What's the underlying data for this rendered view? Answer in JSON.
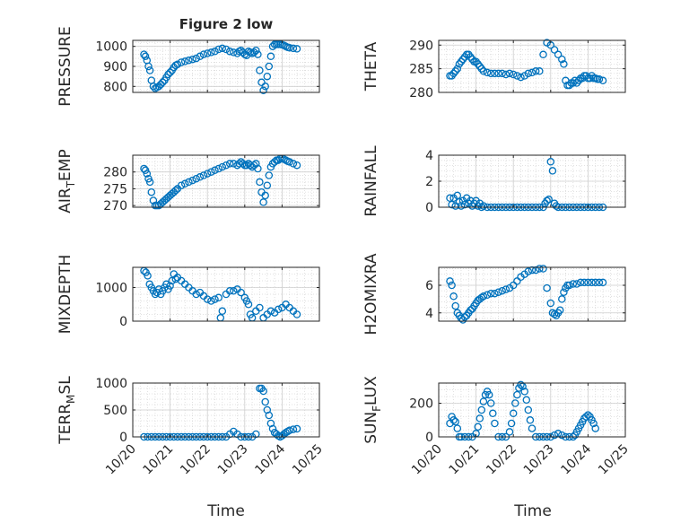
{
  "figure": {
    "title": "Figure 2 low",
    "xlabel_left": "Time",
    "xlabel_right": "Time",
    "xticks": [
      "10/20",
      "10/21",
      "10/22",
      "10/23",
      "10/24",
      "10/25"
    ],
    "marker_color": "#0072BD"
  },
  "chart_data": [
    {
      "type": "scatter",
      "id": "pressure",
      "title": "Figure 2 low",
      "ylabel": "PRESSURE",
      "ylim": [
        770,
        1030
      ],
      "yticks": [
        800,
        900,
        1000
      ],
      "xlim": [
        0,
        5
      ],
      "grid": true,
      "x": [
        0.3,
        0.34,
        0.38,
        0.42,
        0.46,
        0.5,
        0.55,
        0.6,
        0.65,
        0.7,
        0.75,
        0.8,
        0.85,
        0.9,
        0.95,
        1.0,
        1.05,
        1.1,
        1.15,
        1.2,
        1.3,
        1.4,
        1.5,
        1.6,
        1.7,
        1.8,
        1.9,
        2.0,
        2.1,
        2.2,
        2.3,
        2.4,
        2.5,
        2.6,
        2.7,
        2.8,
        2.85,
        2.9,
        2.95,
        3.0,
        3.05,
        3.1,
        3.15,
        3.2,
        3.25,
        3.3,
        3.35,
        3.4,
        3.45,
        3.5,
        3.55,
        3.6,
        3.65,
        3.7,
        3.75,
        3.8,
        3.85,
        3.9,
        3.95,
        4.0,
        4.05,
        4.1,
        4.15,
        4.2,
        4.3,
        4.4
      ],
      "y": [
        960,
        950,
        930,
        900,
        880,
        830,
        800,
        790,
        795,
        800,
        810,
        820,
        830,
        845,
        860,
        870,
        880,
        895,
        905,
        910,
        920,
        925,
        930,
        935,
        940,
        950,
        960,
        965,
        970,
        975,
        985,
        990,
        985,
        975,
        970,
        965,
        975,
        980,
        970,
        960,
        955,
        975,
        970,
        965,
        970,
        980,
        960,
        880,
        820,
        780,
        800,
        850,
        900,
        950,
        1000,
        1010,
        1010,
        1010,
        1010,
        1008,
        1005,
        1000,
        995,
        993,
        990,
        988
      ]
    },
    {
      "type": "scatter",
      "id": "theta",
      "ylabel": "THETA",
      "ylim": [
        280,
        291
      ],
      "yticks": [
        280,
        285,
        290
      ],
      "xlim": [
        0,
        5
      ],
      "grid": true,
      "x": [
        0.3,
        0.35,
        0.4,
        0.45,
        0.5,
        0.55,
        0.6,
        0.65,
        0.7,
        0.75,
        0.8,
        0.85,
        0.9,
        0.95,
        1.0,
        1.05,
        1.1,
        1.15,
        1.2,
        1.3,
        1.4,
        1.5,
        1.6,
        1.7,
        1.8,
        1.9,
        2.0,
        2.1,
        2.2,
        2.3,
        2.4,
        2.5,
        2.6,
        2.7,
        2.8,
        2.9,
        3.0,
        3.1,
        3.2,
        3.3,
        3.35,
        3.4,
        3.45,
        3.5,
        3.55,
        3.6,
        3.65,
        3.7,
        3.75,
        3.8,
        3.85,
        3.9,
        3.95,
        4.0,
        4.05,
        4.1,
        4.15,
        4.2,
        4.25,
        4.3,
        4.4
      ],
      "y": [
        283.5,
        283.5,
        284,
        284.5,
        285,
        286,
        286.5,
        287,
        287.5,
        288,
        288,
        287.5,
        287,
        286.5,
        286.5,
        286,
        285.5,
        285,
        284.5,
        284.2,
        284,
        284,
        284,
        284,
        283.8,
        284,
        283.8,
        283.5,
        283.2,
        283.5,
        284,
        284.2,
        284.5,
        284.5,
        288,
        290.5,
        290,
        289,
        288,
        287,
        286,
        282.5,
        281.5,
        281.5,
        282,
        282,
        282.5,
        282,
        282.5,
        283,
        283,
        283.5,
        283.5,
        283,
        283,
        283.5,
        283,
        283,
        282.8,
        282.8,
        282.5
      ]
    },
    {
      "type": "scatter",
      "id": "air-temp",
      "ylabel": "AIR_TEMP",
      "ylim": [
        269.5,
        285
      ],
      "yticks": [
        270,
        275,
        280
      ],
      "xlim": [
        0,
        5
      ],
      "grid": true,
      "x": [
        0.3,
        0.34,
        0.38,
        0.42,
        0.46,
        0.5,
        0.55,
        0.6,
        0.65,
        0.7,
        0.75,
        0.8,
        0.85,
        0.9,
        0.95,
        1.0,
        1.05,
        1.1,
        1.15,
        1.2,
        1.3,
        1.4,
        1.5,
        1.6,
        1.7,
        1.8,
        1.9,
        2.0,
        2.1,
        2.2,
        2.3,
        2.4,
        2.5,
        2.6,
        2.7,
        2.8,
        2.85,
        2.9,
        2.95,
        3.0,
        3.05,
        3.1,
        3.15,
        3.2,
        3.25,
        3.3,
        3.35,
        3.4,
        3.45,
        3.5,
        3.55,
        3.6,
        3.65,
        3.7,
        3.75,
        3.8,
        3.85,
        3.9,
        3.95,
        4.0,
        4.05,
        4.1,
        4.15,
        4.2,
        4.3,
        4.4
      ],
      "y": [
        281,
        280.5,
        279.5,
        278,
        277,
        274,
        271.5,
        270,
        270,
        270,
        270.5,
        271,
        271.5,
        272,
        272.5,
        273,
        273.5,
        274,
        274.5,
        275,
        276,
        276.5,
        277,
        277.5,
        278,
        278.5,
        279,
        279.5,
        280,
        280.5,
        281,
        281.5,
        282,
        282.5,
        282.5,
        282,
        282.5,
        283,
        282.5,
        282,
        282,
        282.5,
        282,
        281.5,
        282,
        282.5,
        281,
        277,
        274,
        271,
        273,
        276,
        279,
        281.5,
        282.5,
        283,
        283.5,
        283.5,
        284,
        284,
        283.8,
        283.5,
        283.2,
        283,
        282.5,
        282
      ]
    },
    {
      "type": "scatter",
      "id": "rainfall",
      "ylabel": "RAINFALL",
      "ylim": [
        0,
        4
      ],
      "yticks": [
        0,
        2,
        4
      ],
      "xlim": [
        0,
        5
      ],
      "grid": true,
      "x": [
        0.3,
        0.35,
        0.4,
        0.45,
        0.5,
        0.55,
        0.6,
        0.65,
        0.7,
        0.75,
        0.8,
        0.85,
        0.9,
        0.95,
        1.0,
        1.05,
        1.1,
        1.15,
        1.2,
        1.3,
        1.4,
        1.5,
        1.6,
        1.7,
        1.8,
        1.9,
        2.0,
        2.1,
        2.2,
        2.3,
        2.4,
        2.5,
        2.6,
        2.7,
        2.8,
        2.85,
        2.9,
        2.95,
        3.0,
        3.05,
        3.1,
        3.15,
        3.2,
        3.3,
        3.4,
        3.5,
        3.6,
        3.7,
        3.8,
        3.9,
        4.0,
        4.1,
        4.2,
        4.3,
        4.4
      ],
      "y": [
        0.7,
        0.2,
        0.7,
        0.1,
        0.9,
        0.4,
        0.1,
        0.5,
        0.2,
        0.7,
        0.3,
        0.5,
        0.1,
        0.3,
        0.5,
        0.1,
        0.3,
        0,
        0.1,
        0,
        0,
        0,
        0,
        0,
        0,
        0,
        0,
        0,
        0,
        0,
        0,
        0,
        0,
        0,
        0,
        0.3,
        0.5,
        0.6,
        3.5,
        2.8,
        0.3,
        0.1,
        0,
        0,
        0,
        0,
        0,
        0,
        0,
        0,
        0,
        0,
        0,
        0,
        0
      ]
    },
    {
      "type": "scatter",
      "id": "mixdepth",
      "ylabel": "MIXDEPTH",
      "ylim": [
        0,
        1600
      ],
      "yticks": [
        0,
        1000
      ],
      "xlim": [
        0,
        5
      ],
      "grid": true,
      "x": [
        0.3,
        0.35,
        0.4,
        0.45,
        0.5,
        0.55,
        0.6,
        0.65,
        0.7,
        0.75,
        0.8,
        0.85,
        0.9,
        0.95,
        1.0,
        1.05,
        1.1,
        1.15,
        1.2,
        1.3,
        1.4,
        1.5,
        1.6,
        1.7,
        1.8,
        1.9,
        2.0,
        2.1,
        2.2,
        2.3,
        2.35,
        2.4,
        2.5,
        2.6,
        2.7,
        2.8,
        2.9,
        3.0,
        3.05,
        3.1,
        3.15,
        3.2,
        3.3,
        3.4,
        3.5,
        3.6,
        3.7,
        3.8,
        3.9,
        4.0,
        4.1,
        4.2,
        4.3,
        4.4
      ],
      "y": [
        1500,
        1450,
        1350,
        1100,
        1000,
        900,
        800,
        850,
        950,
        800,
        900,
        1000,
        1100,
        950,
        1050,
        1200,
        1400,
        1250,
        1300,
        1200,
        1100,
        1000,
        900,
        800,
        850,
        750,
        650,
        600,
        650,
        700,
        100,
        300,
        800,
        900,
        900,
        950,
        850,
        700,
        600,
        500,
        200,
        100,
        300,
        400,
        100,
        200,
        300,
        250,
        350,
        400,
        500,
        400,
        300,
        200
      ]
    },
    {
      "type": "scatter",
      "id": "h2omixra",
      "ylabel": "H2OMIXRA",
      "ylim": [
        3.4,
        7.3
      ],
      "yticks": [
        4,
        6
      ],
      "xlim": [
        0,
        5
      ],
      "grid": true,
      "x": [
        0.3,
        0.35,
        0.4,
        0.45,
        0.5,
        0.55,
        0.6,
        0.65,
        0.7,
        0.75,
        0.8,
        0.85,
        0.9,
        0.95,
        1.0,
        1.05,
        1.1,
        1.15,
        1.2,
        1.3,
        1.4,
        1.5,
        1.6,
        1.7,
        1.8,
        1.9,
        2.0,
        2.1,
        2.2,
        2.3,
        2.4,
        2.5,
        2.6,
        2.7,
        2.8,
        2.9,
        3.0,
        3.05,
        3.1,
        3.15,
        3.2,
        3.25,
        3.3,
        3.35,
        3.4,
        3.45,
        3.5,
        3.6,
        3.7,
        3.8,
        3.9,
        4.0,
        4.1,
        4.2,
        4.3,
        4.4
      ],
      "y": [
        6.3,
        6,
        5.2,
        4.5,
        4.0,
        3.8,
        3.6,
        3.5,
        3.7,
        3.8,
        4.0,
        4.2,
        4.3,
        4.5,
        4.7,
        4.9,
        5.0,
        5.1,
        5.2,
        5.3,
        5.4,
        5.4,
        5.5,
        5.6,
        5.7,
        5.8,
        6.0,
        6.3,
        6.6,
        6.8,
        7.0,
        7.1,
        7.1,
        7.2,
        7.2,
        5.8,
        4.7,
        4.0,
        3.9,
        3.8,
        4.0,
        4.2,
        5.0,
        5.5,
        5.8,
        6.0,
        6.0,
        6.1,
        6.1,
        6.2,
        6.2,
        6.2,
        6.2,
        6.2,
        6.2,
        6.2
      ]
    },
    {
      "type": "scatter",
      "id": "terr-msl",
      "ylabel": "TERR_MSL",
      "ylim": [
        0,
        1000
      ],
      "yticks": [
        0,
        500,
        1000
      ],
      "xlim": [
        0,
        5
      ],
      "grid": true,
      "x": [
        0.3,
        0.4,
        0.5,
        0.6,
        0.7,
        0.8,
        0.9,
        1.0,
        1.1,
        1.2,
        1.3,
        1.4,
        1.5,
        1.6,
        1.7,
        1.8,
        1.9,
        2.0,
        2.1,
        2.2,
        2.3,
        2.4,
        2.5,
        2.6,
        2.7,
        2.8,
        2.9,
        3.0,
        3.1,
        3.2,
        3.3,
        3.4,
        3.45,
        3.5,
        3.55,
        3.6,
        3.65,
        3.7,
        3.75,
        3.8,
        3.85,
        3.9,
        3.95,
        4.0,
        4.05,
        4.1,
        4.15,
        4.2,
        4.3,
        4.4
      ],
      "y": [
        0,
        0,
        0,
        0,
        0,
        0,
        0,
        0,
        0,
        0,
        0,
        0,
        0,
        0,
        0,
        0,
        0,
        0,
        0,
        0,
        0,
        0,
        0,
        50,
        100,
        50,
        0,
        0,
        0,
        0,
        50,
        900,
        900,
        850,
        650,
        500,
        400,
        250,
        150,
        80,
        50,
        20,
        0,
        20,
        50,
        80,
        100,
        120,
        140,
        150
      ]
    },
    {
      "type": "scatter",
      "id": "sun-flux",
      "ylabel": "SUN_FLUX",
      "ylim": [
        0,
        320
      ],
      "yticks": [
        0,
        200
      ],
      "xlim": [
        0,
        5
      ],
      "grid": true,
      "x": [
        0.3,
        0.35,
        0.4,
        0.45,
        0.5,
        0.55,
        0.6,
        0.7,
        0.8,
        0.9,
        1.0,
        1.05,
        1.1,
        1.15,
        1.2,
        1.25,
        1.3,
        1.35,
        1.4,
        1.45,
        1.5,
        1.6,
        1.7,
        1.8,
        1.9,
        1.95,
        2.0,
        2.05,
        2.1,
        2.15,
        2.2,
        2.25,
        2.3,
        2.35,
        2.4,
        2.45,
        2.5,
        2.6,
        2.7,
        2.8,
        2.9,
        3.0,
        3.1,
        3.2,
        3.3,
        3.4,
        3.5,
        3.6,
        3.65,
        3.7,
        3.75,
        3.8,
        3.85,
        3.9,
        3.95,
        4.0,
        4.05,
        4.1,
        4.15,
        4.2
      ],
      "y": [
        80,
        120,
        100,
        90,
        50,
        0,
        0,
        0,
        0,
        0,
        20,
        60,
        110,
        160,
        210,
        250,
        270,
        250,
        200,
        140,
        80,
        0,
        0,
        0,
        30,
        80,
        140,
        200,
        250,
        290,
        310,
        300,
        270,
        220,
        160,
        100,
        50,
        0,
        0,
        0,
        0,
        0,
        10,
        20,
        10,
        0,
        0,
        0,
        10,
        30,
        50,
        70,
        90,
        110,
        120,
        130,
        120,
        100,
        80,
        50
      ]
    }
  ]
}
